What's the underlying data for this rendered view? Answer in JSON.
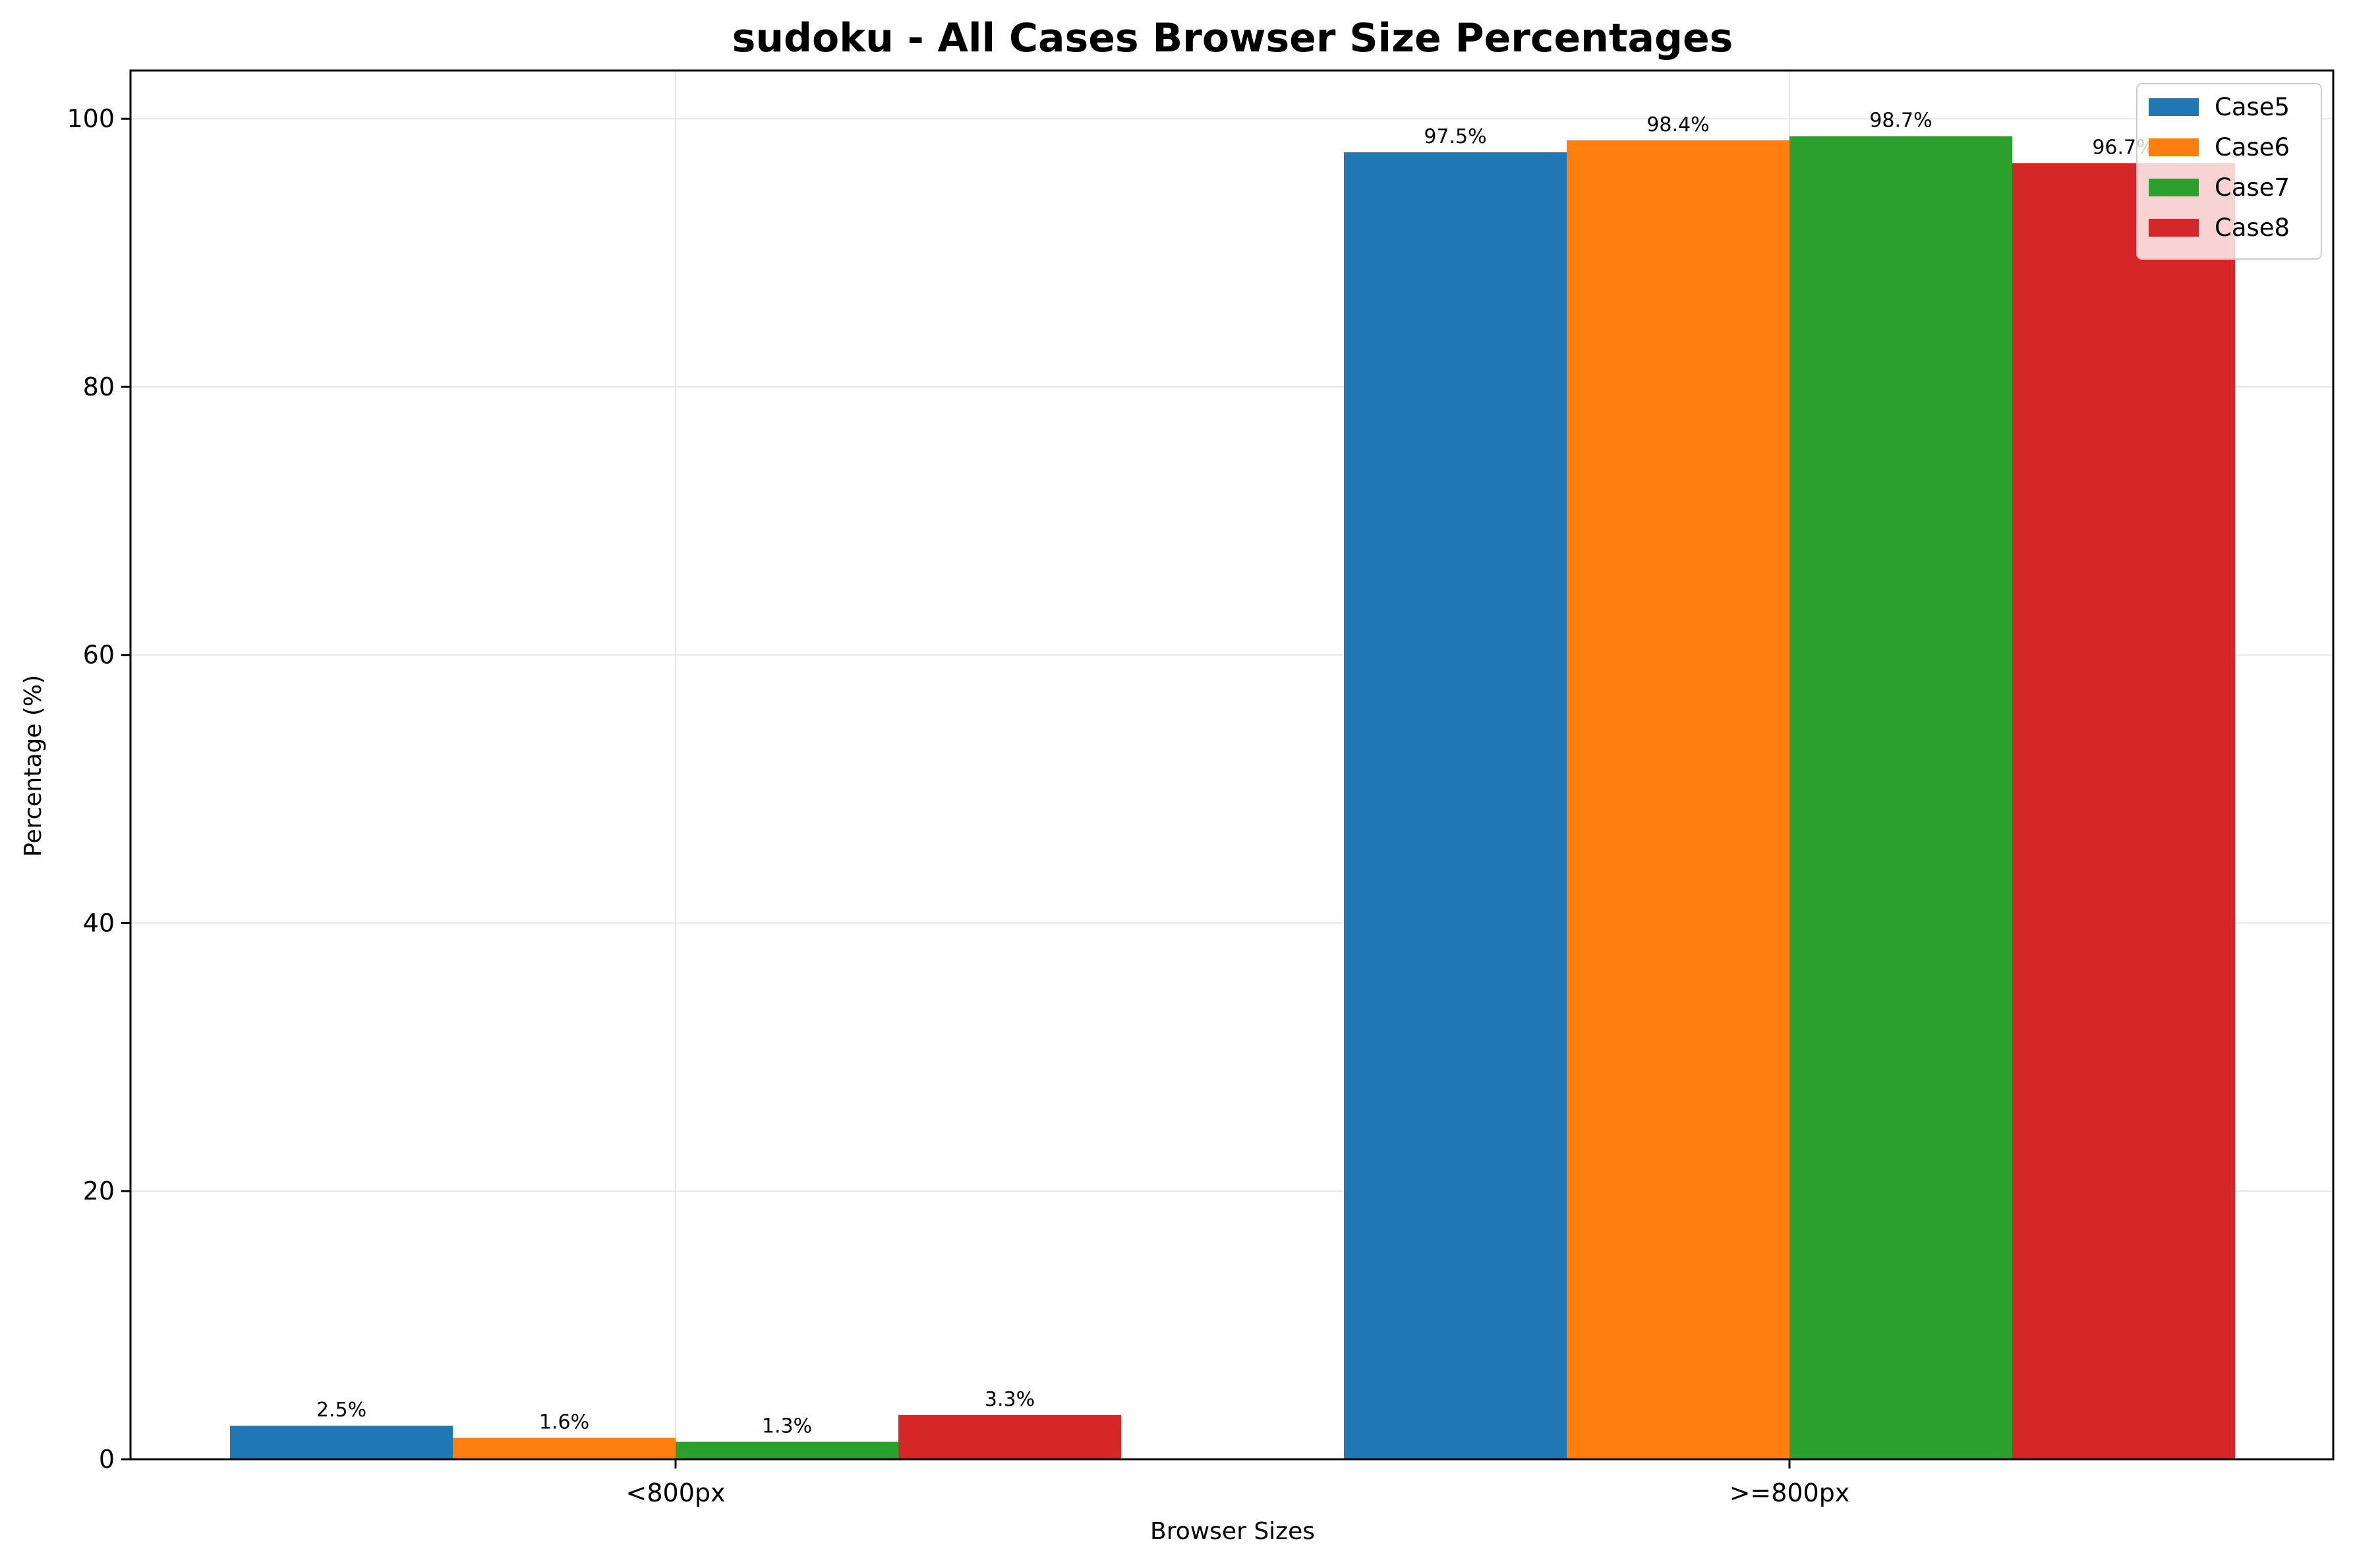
{
  "chart_data": {
    "type": "bar",
    "title": "sudoku - All Cases Browser Size Percentages",
    "xlabel": "Browser Sizes",
    "ylabel": "Percentage (%)",
    "categories": [
      "<800px",
      ">=800px"
    ],
    "series": [
      {
        "name": "Case5",
        "color": "#1f77b4",
        "values": [
          2.5,
          97.5
        ],
        "labels": [
          "2.5%",
          "97.5%"
        ]
      },
      {
        "name": "Case6",
        "color": "#ff7f0e",
        "values": [
          1.6,
          98.4
        ],
        "labels": [
          "1.6%",
          "98.4%"
        ]
      },
      {
        "name": "Case7",
        "color": "#2ca02c",
        "values": [
          1.3,
          98.7
        ],
        "labels": [
          "1.3%",
          "98.7%"
        ]
      },
      {
        "name": "Case8",
        "color": "#d62728",
        "values": [
          3.3,
          96.7
        ],
        "labels": [
          "3.3%",
          "96.7%"
        ]
      }
    ],
    "yticks": [
      0,
      20,
      40,
      60,
      80,
      100
    ],
    "ylim": [
      0,
      103.6
    ],
    "grid": true,
    "legend_position": "top-right"
  }
}
